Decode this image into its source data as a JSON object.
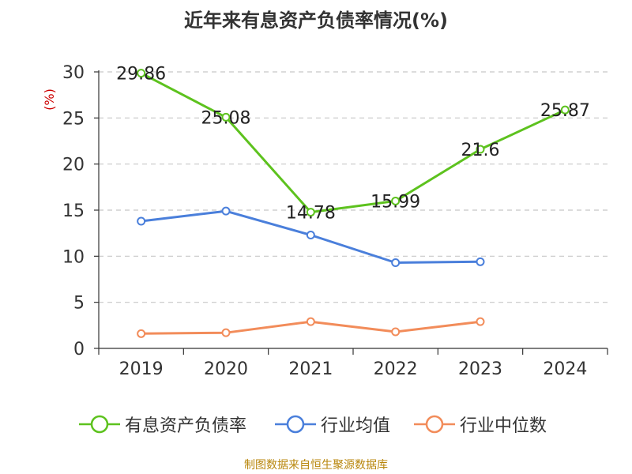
{
  "title": "近年来有息资产负债率情况(%)",
  "footer": "制图数据来自恒生聚源数据库",
  "chart_data": {
    "type": "line",
    "title": "近年来有息资产负债率情况(%)",
    "ylabel": "(%)",
    "xlabel": "",
    "categories": [
      "2019",
      "2020",
      "2021",
      "2022",
      "2023",
      "2024"
    ],
    "ylim": [
      0,
      30
    ],
    "yticks": [
      0,
      5,
      10,
      15,
      20,
      25,
      30
    ],
    "grid": true,
    "legend_position": "bottom",
    "series": [
      {
        "name": "有息资产负债率",
        "color": "#5dc21e",
        "values": [
          29.86,
          25.08,
          14.78,
          15.99,
          21.6,
          25.87
        ],
        "data_labels": [
          "29.86",
          "25.08",
          "14.78",
          "15.99",
          "21.6",
          "25.87"
        ]
      },
      {
        "name": "行业均值",
        "color": "#4a7fdb",
        "values": [
          13.8,
          14.9,
          12.3,
          9.3,
          9.4,
          null
        ]
      },
      {
        "name": "行业中位数",
        "color": "#f28c5a",
        "values": [
          1.6,
          1.7,
          2.9,
          1.8,
          2.9,
          null
        ]
      }
    ]
  }
}
